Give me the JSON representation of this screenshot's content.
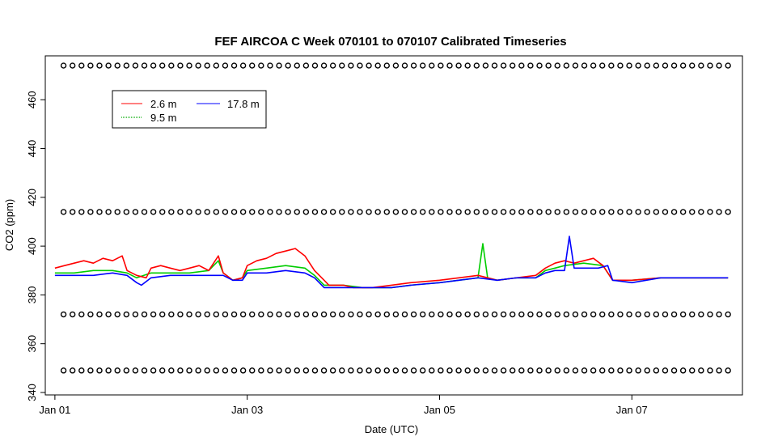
{
  "chart_data": {
    "type": "line",
    "title": "FEF AIRCOA C  Week 070101 to 070107  Calibrated Timeseries",
    "xlabel": "Date (UTC)",
    "ylabel": "CO2 (ppm)",
    "xlim": [
      -0.1,
      7.15
    ],
    "ylim": [
      339,
      478
    ],
    "y_ticks": [
      340,
      360,
      380,
      400,
      420,
      440,
      460
    ],
    "x_ticks": [
      {
        "label": "Jan 01",
        "day": 0
      },
      {
        "label": "Jan 03",
        "day": 2
      },
      {
        "label": "Jan 05",
        "day": 4
      },
      {
        "label": "Jan 07",
        "day": 6
      }
    ],
    "legend": {
      "placement": "top-left",
      "entries": [
        {
          "label": "2.6 m",
          "color": "#ff0000",
          "style": "solid"
        },
        {
          "label": "9.5 m",
          "color": "#00cc00",
          "style": "dotted"
        },
        {
          "label": "17.8 m",
          "color": "#0000ff",
          "style": "solid"
        }
      ]
    },
    "series": [
      {
        "name": "2.6 m",
        "color": "#ff0000",
        "x": [
          0.0,
          0.1,
          0.2,
          0.3,
          0.4,
          0.5,
          0.6,
          0.7,
          0.75,
          0.85,
          0.95,
          1.0,
          1.1,
          1.2,
          1.3,
          1.4,
          1.5,
          1.6,
          1.7,
          1.75,
          1.85,
          1.95,
          2.0,
          2.1,
          2.2,
          2.3,
          2.4,
          2.5,
          2.6,
          2.7,
          2.8,
          2.85,
          2.9,
          3.0,
          3.1,
          3.2,
          3.3,
          3.5,
          3.7,
          4.0,
          4.2,
          4.4,
          4.5,
          4.6,
          4.8,
          5.0,
          5.1,
          5.2,
          5.3,
          5.4,
          5.5,
          5.6,
          5.7,
          5.8,
          5.9,
          6.0,
          6.3,
          6.6,
          7.0
        ],
        "y": [
          391,
          392,
          393,
          394,
          393,
          395,
          394,
          396,
          390,
          388,
          387,
          391,
          392,
          391,
          390,
          391,
          392,
          390,
          396,
          389,
          386,
          387,
          392,
          394,
          395,
          397,
          398,
          399,
          396,
          390,
          386,
          384,
          384,
          384,
          383,
          383,
          383,
          384,
          385,
          386,
          387,
          388,
          387,
          386,
          387,
          388,
          391,
          393,
          394,
          393,
          394,
          395,
          392,
          386,
          386,
          386,
          387,
          387,
          387
        ]
      },
      {
        "name": "9.5 m",
        "color": "#00cc00",
        "x": [
          0.0,
          0.2,
          0.4,
          0.6,
          0.75,
          0.85,
          1.0,
          1.2,
          1.4,
          1.6,
          1.7,
          1.75,
          1.85,
          1.95,
          2.0,
          2.2,
          2.4,
          2.6,
          2.7,
          2.8,
          2.9,
          3.0,
          3.2,
          3.5,
          3.7,
          4.0,
          4.2,
          4.4,
          4.45,
          4.5,
          4.6,
          4.8,
          5.0,
          5.1,
          5.2,
          5.3,
          5.5,
          5.7,
          5.8,
          6.0,
          6.3,
          6.6,
          7.0
        ],
        "y": [
          389,
          389,
          390,
          390,
          389,
          387,
          389,
          389,
          389,
          390,
          394,
          389,
          386,
          387,
          390,
          391,
          392,
          391,
          388,
          384,
          384,
          384,
          383,
          383,
          384,
          385,
          386,
          387,
          401,
          387,
          386,
          387,
          387,
          390,
          391,
          392,
          393,
          392,
          386,
          386,
          387,
          387,
          387
        ]
      },
      {
        "name": "17.8 m",
        "color": "#0000ff",
        "x": [
          0.0,
          0.2,
          0.4,
          0.6,
          0.75,
          0.85,
          0.9,
          1.0,
          1.2,
          1.4,
          1.6,
          1.75,
          1.85,
          1.95,
          2.0,
          2.2,
          2.4,
          2.6,
          2.7,
          2.8,
          2.9,
          3.0,
          3.2,
          3.5,
          3.7,
          4.0,
          4.2,
          4.4,
          4.6,
          4.8,
          5.0,
          5.1,
          5.2,
          5.3,
          5.35,
          5.4,
          5.5,
          5.65,
          5.75,
          5.8,
          6.0,
          6.3,
          6.6,
          7.0
        ],
        "y": [
          388,
          388,
          388,
          389,
          388,
          385,
          384,
          387,
          388,
          388,
          388,
          388,
          386,
          386,
          389,
          389,
          390,
          389,
          387,
          383,
          383,
          383,
          383,
          383,
          384,
          385,
          386,
          387,
          386,
          387,
          387,
          389,
          390,
          390,
          404,
          391,
          391,
          391,
          392,
          386,
          385,
          387,
          387,
          387
        ]
      }
    ],
    "reference_markers": {
      "marker": "o",
      "levels": [
        474,
        414,
        372,
        349
      ],
      "x_start": 0.09,
      "x_end": 7.0,
      "count_per_level": 75
    }
  }
}
